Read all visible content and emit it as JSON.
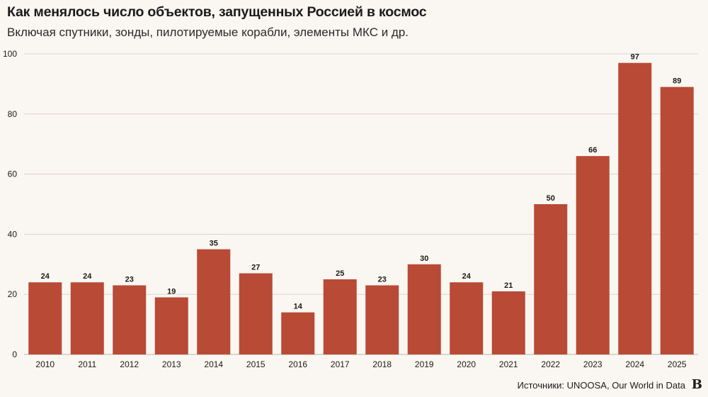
{
  "header": {
    "title": "Как менялось число объектов, запущенных Россией в космос",
    "subtitle": "Включая спутники, зонды, пилотируемые корабли, элементы МКС и др."
  },
  "footer": {
    "source": "Источники: UNOOSA, Our World in Data",
    "logo_letter": "B"
  },
  "colors": {
    "bar": "#b84a36",
    "grid": "#d9d4cf",
    "axis_text": "#1b1b1b",
    "background": "#faf6f1"
  },
  "chart_data": {
    "type": "bar",
    "title": "Как менялось число объектов, запущенных Россией в космос",
    "subtitle": "Включая спутники, зонды, пилотируемые корабли, элементы МКС и др.",
    "categories": [
      "2010",
      "2011",
      "2012",
      "2013",
      "2014",
      "2015",
      "2016",
      "2017",
      "2018",
      "2019",
      "2020",
      "2021",
      "2022",
      "2023",
      "2024",
      "2025"
    ],
    "values": [
      24,
      24,
      23,
      19,
      35,
      27,
      14,
      25,
      23,
      30,
      24,
      21,
      50,
      66,
      97,
      89
    ],
    "xlabel": "",
    "ylabel": "",
    "ylim": [
      0,
      100
    ],
    "yticks": [
      0,
      20,
      40,
      60,
      80,
      100
    ],
    "grid": true,
    "data_labels": true
  }
}
